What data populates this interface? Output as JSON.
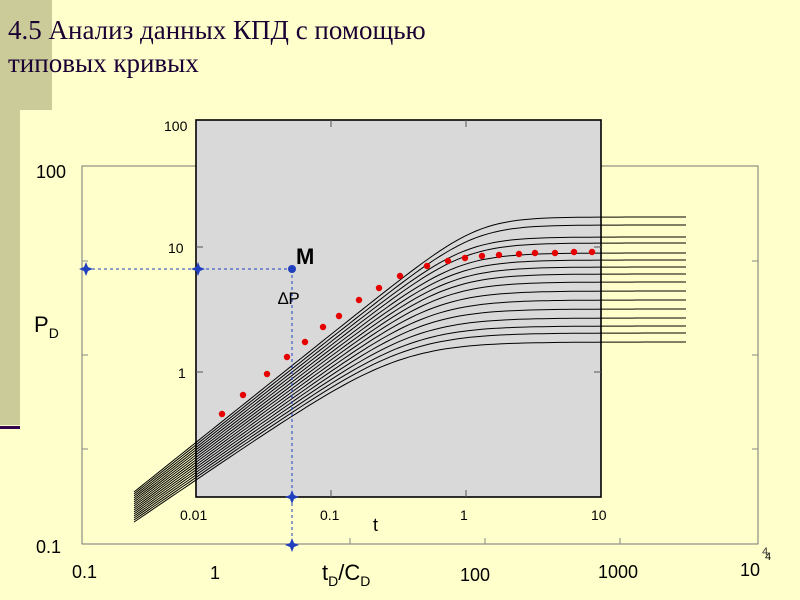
{
  "slide": {
    "title_line1": "4.5 Анализ данных КПД с помощью",
    "title_line2": "типовых кривых",
    "page_number": "4"
  },
  "colors": {
    "background": "#ffffcc",
    "accent_bar": "#cbcb99",
    "overlay": "#d9d9d9",
    "curves": "#000000",
    "data_points": "#e60000",
    "guides": "#1f3fbf"
  },
  "type_curve_chart": {
    "y_ticks": [
      "100",
      "0.1"
    ],
    "x_ticks": [
      "0.1",
      "1",
      "100",
      "1000",
      "10"
    ],
    "x_last_exponent": "4",
    "y_label": {
      "base": "P",
      "sub": "D"
    },
    "x_label": {
      "t": "t",
      "t_sub": "D",
      "slash": "/",
      "c": "C",
      "c_sub": "D"
    }
  },
  "field_overlay": {
    "y_ticks": [
      "100",
      "10",
      "1"
    ],
    "x_ticks": [
      "0.01",
      "0.1",
      "1",
      "10"
    ],
    "y_label": "∆P",
    "x_label": "t"
  },
  "match_point": {
    "label": "M"
  }
}
